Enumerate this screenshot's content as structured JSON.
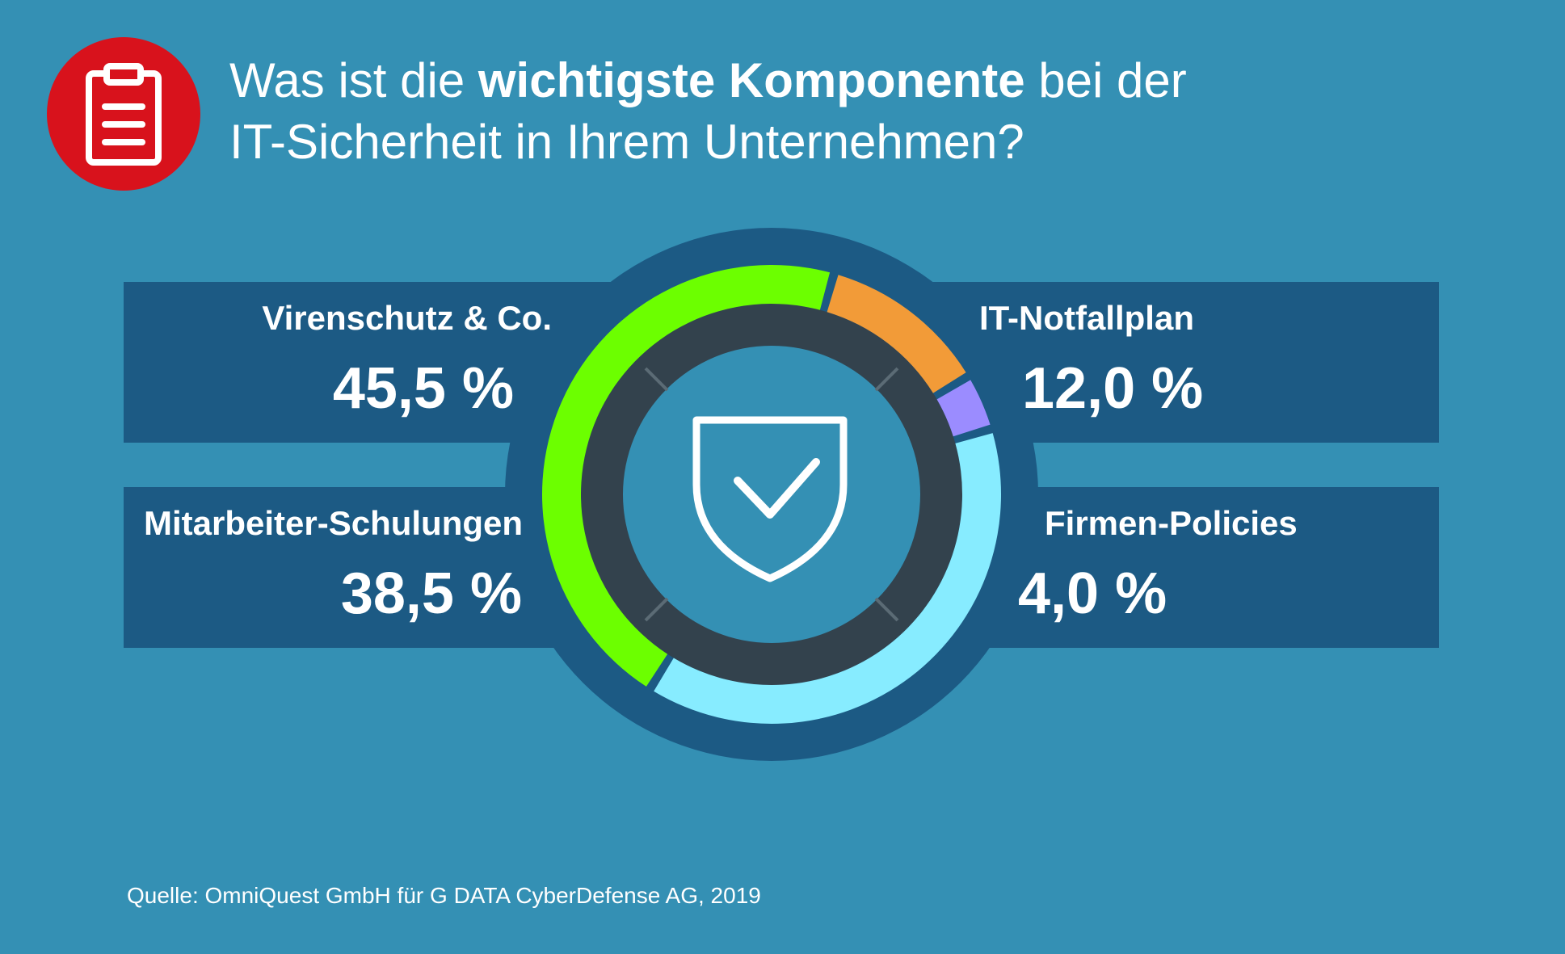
{
  "title": {
    "part1": "Was ist die ",
    "bold": "wichtigste Komponente",
    "part2": " bei der",
    "line2": "IT-Sicherheit in Ihrem Unternehmen?"
  },
  "icons": {
    "title_icon": "clipboard-icon",
    "center_icon": "shield-check-icon"
  },
  "colors": {
    "background": "#3490b4",
    "panel": "#1c5a84",
    "ring_dark": "#33424d",
    "icon_circle": "#d8121c"
  },
  "chart_data": {
    "type": "pie",
    "categories": [
      "Virenschutz & Co.",
      "IT-Notfallplan",
      "Firmen-Policies",
      "Mitarbeiter-Schulungen"
    ],
    "values": [
      45.5,
      12.0,
      4.0,
      38.5
    ],
    "value_labels": [
      "45,5 %",
      "12,0 %",
      "4,0 %",
      "38,5 %"
    ],
    "colors": [
      "#6cff00",
      "#f29b38",
      "#9b8cff",
      "#87ecff"
    ],
    "unit": "%"
  },
  "source": "Quelle: OmniQuest GmbH für G DATA CyberDefense AG, 2019"
}
